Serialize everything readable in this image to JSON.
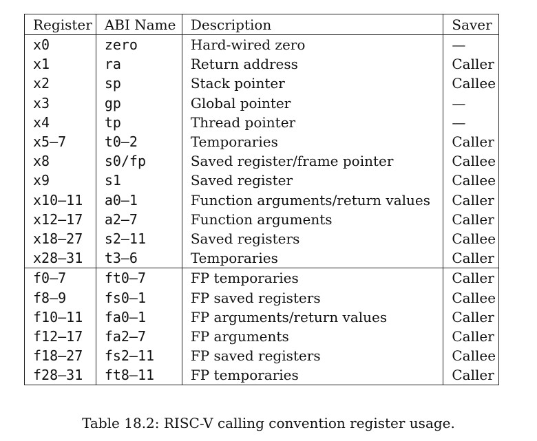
{
  "table": {
    "headers": [
      "Register",
      "ABI Name",
      "Description",
      "Saver"
    ],
    "rows": [
      [
        "x0",
        "zero",
        "Hard-wired zero",
        "—"
      ],
      [
        "x1",
        "ra",
        "Return address",
        "Caller"
      ],
      [
        "x2",
        "sp",
        "Stack pointer",
        "Callee"
      ],
      [
        "x3",
        "gp",
        "Global pointer",
        "—"
      ],
      [
        "x4",
        "tp",
        "Thread pointer",
        "—"
      ],
      [
        "x5–7",
        "t0–2",
        "Temporaries",
        "Caller"
      ],
      [
        "x8",
        "s0/fp",
        "Saved register/frame pointer",
        "Callee"
      ],
      [
        "x9",
        "s1",
        "Saved register",
        "Callee"
      ],
      [
        "x10–11",
        "a0–1",
        "Function arguments/return values",
        "Caller"
      ],
      [
        "x12–17",
        "a2–7",
        "Function arguments",
        "Caller"
      ],
      [
        "x18–27",
        "s2–11",
        "Saved registers",
        "Callee"
      ],
      [
        "x28–31",
        "t3–6",
        "Temporaries",
        "Caller"
      ],
      [
        "f0–7",
        "ft0–7",
        "FP temporaries",
        "Caller"
      ],
      [
        "f8–9",
        "fs0–1",
        "FP saved registers",
        "Callee"
      ],
      [
        "f10–11",
        "fa0–1",
        "FP arguments/return values",
        "Caller"
      ],
      [
        "f12–17",
        "fa2–7",
        "FP arguments",
        "Caller"
      ],
      [
        "f18–27",
        "fs2–11",
        "FP saved registers",
        "Callee"
      ],
      [
        "f28–31",
        "ft8–11",
        "FP temporaries",
        "Caller"
      ]
    ]
  },
  "caption": "Table 18.2: RISC-V calling convention register usage."
}
